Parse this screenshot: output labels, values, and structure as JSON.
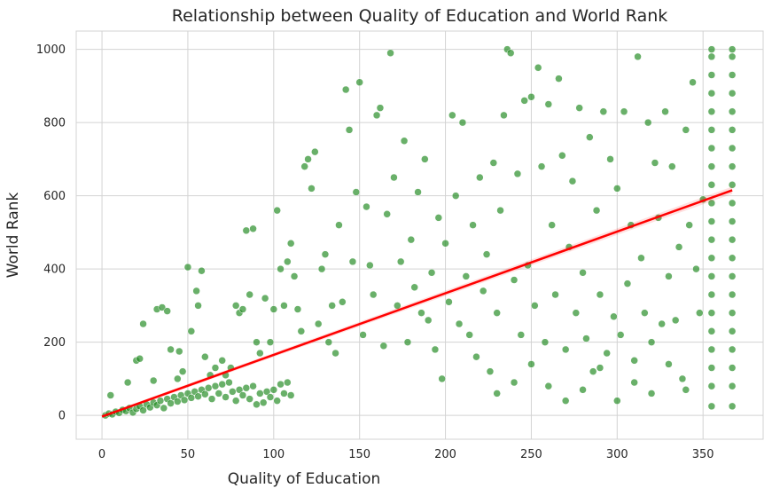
{
  "chart_data": {
    "type": "scatter",
    "title": "Relationship between Quality of Education and World Rank",
    "xlabel": "Quality of Education",
    "ylabel": "World Rank",
    "xlim": [
      -15,
      385
    ],
    "ylim": [
      -65,
      1050
    ],
    "xticks": [
      0,
      50,
      100,
      150,
      200,
      250,
      300,
      350
    ],
    "yticks": [
      0,
      200,
      400,
      600,
      800,
      1000
    ],
    "grid": true,
    "background": "#ffffff",
    "point_color": "#228b22",
    "trend_color": "#ff0000",
    "series": [
      {
        "values_points": [
          [
            2,
            0
          ],
          [
            4,
            5
          ],
          [
            6,
            3
          ],
          [
            8,
            10
          ],
          [
            10,
            7
          ],
          [
            12,
            15
          ],
          [
            14,
            12
          ],
          [
            16,
            20
          ],
          [
            18,
            8
          ],
          [
            20,
            18
          ],
          [
            22,
            25
          ],
          [
            24,
            14
          ],
          [
            26,
            30
          ],
          [
            28,
            22
          ],
          [
            30,
            35
          ],
          [
            32,
            28
          ],
          [
            34,
            40
          ],
          [
            36,
            20
          ],
          [
            38,
            45
          ],
          [
            40,
            33
          ],
          [
            42,
            50
          ],
          [
            44,
            38
          ],
          [
            46,
            55
          ],
          [
            48,
            42
          ],
          [
            50,
            60
          ],
          [
            52,
            48
          ],
          [
            54,
            65
          ],
          [
            56,
            52
          ],
          [
            58,
            70
          ],
          [
            60,
            58
          ],
          [
            62,
            75
          ],
          [
            64,
            45
          ],
          [
            66,
            80
          ],
          [
            68,
            60
          ],
          [
            70,
            85
          ],
          [
            72,
            50
          ],
          [
            74,
            90
          ],
          [
            76,
            65
          ],
          [
            78,
            40
          ],
          [
            80,
            70
          ],
          [
            82,
            55
          ],
          [
            84,
            75
          ],
          [
            86,
            45
          ],
          [
            88,
            80
          ],
          [
            90,
            30
          ],
          [
            92,
            60
          ],
          [
            94,
            35
          ],
          [
            96,
            65
          ],
          [
            98,
            50
          ],
          [
            100,
            70
          ],
          [
            102,
            40
          ],
          [
            104,
            85
          ],
          [
            106,
            60
          ],
          [
            108,
            90
          ],
          [
            110,
            55
          ],
          [
            5,
            55
          ],
          [
            15,
            90
          ],
          [
            20,
            150
          ],
          [
            22,
            155
          ],
          [
            24,
            250
          ],
          [
            30,
            95
          ],
          [
            32,
            290
          ],
          [
            35,
            295
          ],
          [
            38,
            285
          ],
          [
            40,
            180
          ],
          [
            44,
            100
          ],
          [
            45,
            175
          ],
          [
            47,
            120
          ],
          [
            50,
            405
          ],
          [
            52,
            230
          ],
          [
            55,
            340
          ],
          [
            56,
            300
          ],
          [
            58,
            395
          ],
          [
            60,
            160
          ],
          [
            63,
            110
          ],
          [
            66,
            130
          ],
          [
            70,
            150
          ],
          [
            72,
            110
          ],
          [
            75,
            130
          ],
          [
            78,
            300
          ],
          [
            80,
            280
          ],
          [
            82,
            290
          ],
          [
            84,
            505
          ],
          [
            86,
            330
          ],
          [
            88,
            510
          ],
          [
            90,
            200
          ],
          [
            92,
            170
          ],
          [
            95,
            320
          ],
          [
            98,
            200
          ],
          [
            100,
            290
          ],
          [
            102,
            560
          ],
          [
            104,
            400
          ],
          [
            106,
            300
          ],
          [
            108,
            420
          ],
          [
            110,
            470
          ],
          [
            112,
            380
          ],
          [
            114,
            290
          ],
          [
            116,
            230
          ],
          [
            118,
            680
          ],
          [
            120,
            700
          ],
          [
            122,
            620
          ],
          [
            124,
            720
          ],
          [
            126,
            250
          ],
          [
            128,
            400
          ],
          [
            130,
            440
          ],
          [
            132,
            200
          ],
          [
            134,
            300
          ],
          [
            136,
            170
          ],
          [
            138,
            520
          ],
          [
            140,
            310
          ],
          [
            142,
            890
          ],
          [
            144,
            780
          ],
          [
            146,
            420
          ],
          [
            148,
            610
          ],
          [
            150,
            910
          ],
          [
            152,
            220
          ],
          [
            154,
            570
          ],
          [
            156,
            410
          ],
          [
            158,
            330
          ],
          [
            160,
            820
          ],
          [
            162,
            840
          ],
          [
            164,
            190
          ],
          [
            166,
            550
          ],
          [
            168,
            990
          ],
          [
            170,
            650
          ],
          [
            172,
            300
          ],
          [
            174,
            420
          ],
          [
            176,
            750
          ],
          [
            178,
            200
          ],
          [
            180,
            480
          ],
          [
            182,
            350
          ],
          [
            184,
            610
          ],
          [
            186,
            280
          ],
          [
            188,
            700
          ],
          [
            190,
            260
          ],
          [
            192,
            390
          ],
          [
            194,
            180
          ],
          [
            196,
            540
          ],
          [
            198,
            100
          ],
          [
            200,
            470
          ],
          [
            202,
            310
          ],
          [
            204,
            820
          ],
          [
            206,
            600
          ],
          [
            208,
            250
          ],
          [
            210,
            800
          ],
          [
            212,
            380
          ],
          [
            214,
            220
          ],
          [
            216,
            520
          ],
          [
            218,
            160
          ],
          [
            220,
            650
          ],
          [
            222,
            340
          ],
          [
            224,
            440
          ],
          [
            226,
            120
          ],
          [
            228,
            690
          ],
          [
            230,
            280
          ],
          [
            232,
            560
          ],
          [
            234,
            820
          ],
          [
            236,
            1000
          ],
          [
            238,
            990
          ],
          [
            240,
            370
          ],
          [
            242,
            660
          ],
          [
            244,
            220
          ],
          [
            246,
            860
          ],
          [
            248,
            410
          ],
          [
            250,
            870
          ],
          [
            252,
            300
          ],
          [
            254,
            950
          ],
          [
            256,
            680
          ],
          [
            258,
            200
          ],
          [
            260,
            850
          ],
          [
            262,
            520
          ],
          [
            264,
            330
          ],
          [
            266,
            920
          ],
          [
            268,
            710
          ],
          [
            270,
            180
          ],
          [
            272,
            460
          ],
          [
            274,
            640
          ],
          [
            276,
            280
          ],
          [
            278,
            840
          ],
          [
            280,
            390
          ],
          [
            282,
            210
          ],
          [
            284,
            760
          ],
          [
            286,
            120
          ],
          [
            288,
            560
          ],
          [
            290,
            330
          ],
          [
            292,
            830
          ],
          [
            294,
            170
          ],
          [
            296,
            700
          ],
          [
            298,
            270
          ],
          [
            300,
            620
          ],
          [
            302,
            220
          ],
          [
            304,
            830
          ],
          [
            306,
            360
          ],
          [
            308,
            520
          ],
          [
            310,
            150
          ],
          [
            312,
            980
          ],
          [
            314,
            430
          ],
          [
            316,
            280
          ],
          [
            318,
            800
          ],
          [
            320,
            200
          ],
          [
            322,
            690
          ],
          [
            324,
            540
          ],
          [
            326,
            250
          ],
          [
            328,
            830
          ],
          [
            330,
            380
          ],
          [
            332,
            680
          ],
          [
            334,
            260
          ],
          [
            336,
            460
          ],
          [
            338,
            100
          ],
          [
            340,
            780
          ],
          [
            342,
            520
          ],
          [
            344,
            910
          ],
          [
            346,
            400
          ],
          [
            348,
            280
          ],
          [
            350,
            590
          ],
          [
            230,
            60
          ],
          [
            240,
            90
          ],
          [
            250,
            140
          ],
          [
            260,
            80
          ],
          [
            270,
            40
          ],
          [
            280,
            70
          ],
          [
            290,
            130
          ],
          [
            300,
            40
          ],
          [
            310,
            90
          ],
          [
            320,
            60
          ],
          [
            330,
            140
          ],
          [
            340,
            70
          ],
          [
            355,
            25
          ],
          [
            355,
            80
          ],
          [
            355,
            130
          ],
          [
            355,
            180
          ],
          [
            355,
            230
          ],
          [
            355,
            280
          ],
          [
            355,
            330
          ],
          [
            355,
            380
          ],
          [
            355,
            430
          ],
          [
            355,
            480
          ],
          [
            355,
            530
          ],
          [
            355,
            580
          ],
          [
            355,
            630
          ],
          [
            355,
            680
          ],
          [
            355,
            730
          ],
          [
            355,
            780
          ],
          [
            355,
            830
          ],
          [
            355,
            880
          ],
          [
            355,
            930
          ],
          [
            355,
            980
          ],
          [
            355,
            1000
          ],
          [
            367,
            25
          ],
          [
            367,
            80
          ],
          [
            367,
            130
          ],
          [
            367,
            180
          ],
          [
            367,
            230
          ],
          [
            367,
            280
          ],
          [
            367,
            330
          ],
          [
            367,
            380
          ],
          [
            367,
            430
          ],
          [
            367,
            480
          ],
          [
            367,
            530
          ],
          [
            367,
            580
          ],
          [
            367,
            630
          ],
          [
            367,
            680
          ],
          [
            367,
            730
          ],
          [
            367,
            780
          ],
          [
            367,
            830
          ],
          [
            367,
            880
          ],
          [
            367,
            930
          ],
          [
            367,
            980
          ],
          [
            367,
            1000
          ]
        ]
      }
    ],
    "trendline": {
      "x": [
        0,
        367
      ],
      "y": [
        -3,
        615
      ]
    }
  }
}
